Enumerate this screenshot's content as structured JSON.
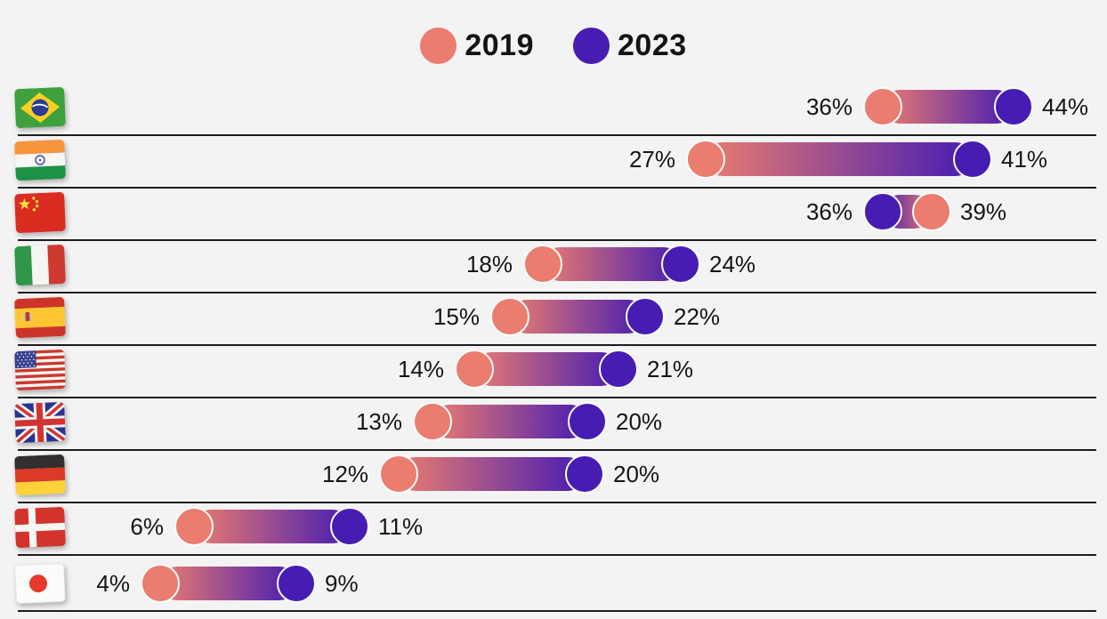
{
  "page": {
    "background": "#F4F3F3",
    "separator_color": "#1C1C1C"
  },
  "legend": {
    "position": "top-center",
    "items": [
      {
        "label": "2019",
        "color": "#EA7C70"
      },
      {
        "label": "2023",
        "color": "#471CB2"
      }
    ]
  },
  "chart_data": {
    "type": "dumbbell",
    "orientation": "horizontal",
    "title": "",
    "xlabel": "",
    "ylabel": "",
    "unit": "%",
    "x_range": [
      0,
      50
    ],
    "grid": false,
    "row_separators": true,
    "legend_position": "top-center",
    "categories": [
      "Brazil",
      "India",
      "China",
      "Italy",
      "Spain",
      "United States",
      "United Kingdom",
      "Germany",
      "Denmark",
      "Japan"
    ],
    "series": [
      {
        "name": "2019",
        "color": "#EA7C70",
        "values": [
          36,
          27,
          39,
          18,
          15,
          14,
          13,
          12,
          6,
          4
        ]
      },
      {
        "name": "2023",
        "color": "#471CB2",
        "values": [
          44,
          41,
          36,
          24,
          22,
          21,
          20,
          20,
          11,
          9
        ]
      }
    ],
    "rows": [
      {
        "country": "Brazil",
        "flag": "brazil",
        "left": {
          "year": "2019",
          "value": 36,
          "label": "36%"
        },
        "right": {
          "year": "2023",
          "value": 44,
          "label": "44%"
        }
      },
      {
        "country": "India",
        "flag": "india",
        "left": {
          "year": "2019",
          "value": 27,
          "label": "27%"
        },
        "right": {
          "year": "2023",
          "value": 41,
          "label": "41%"
        }
      },
      {
        "country": "China",
        "flag": "china",
        "left": {
          "year": "2023",
          "value": 36,
          "label": "36%"
        },
        "right": {
          "year": "2019",
          "value": 39,
          "label": "39%"
        }
      },
      {
        "country": "Italy",
        "flag": "italy",
        "left": {
          "year": "2019",
          "value": 18,
          "label": "18%"
        },
        "right": {
          "year": "2023",
          "value": 24,
          "label": "24%"
        }
      },
      {
        "country": "Spain",
        "flag": "spain",
        "left": {
          "year": "2019",
          "value": 15,
          "label": "15%"
        },
        "right": {
          "year": "2023",
          "value": 22,
          "label": "22%"
        }
      },
      {
        "country": "United States",
        "flag": "usa",
        "left": {
          "year": "2019",
          "value": 14,
          "label": "14%"
        },
        "right": {
          "year": "2023",
          "value": 21,
          "label": "21%"
        }
      },
      {
        "country": "United Kingdom",
        "flag": "uk",
        "left": {
          "year": "2019",
          "value": 13,
          "label": "13%"
        },
        "right": {
          "year": "2023",
          "value": 20,
          "label": "20%"
        }
      },
      {
        "country": "Germany",
        "flag": "germany",
        "left": {
          "year": "2019",
          "value": 12,
          "label": "12%"
        },
        "right": {
          "year": "2023",
          "value": 20,
          "label": "20%"
        }
      },
      {
        "country": "Denmark",
        "flag": "denmark",
        "left": {
          "year": "2019",
          "value": 6,
          "label": "6%"
        },
        "right": {
          "year": "2023",
          "value": 11,
          "label": "11%"
        }
      },
      {
        "country": "Japan",
        "flag": "japan",
        "left": {
          "year": "2019",
          "value": 4,
          "label": "4%"
        },
        "right": {
          "year": "2023",
          "value": 9,
          "label": "9%"
        }
      }
    ]
  }
}
